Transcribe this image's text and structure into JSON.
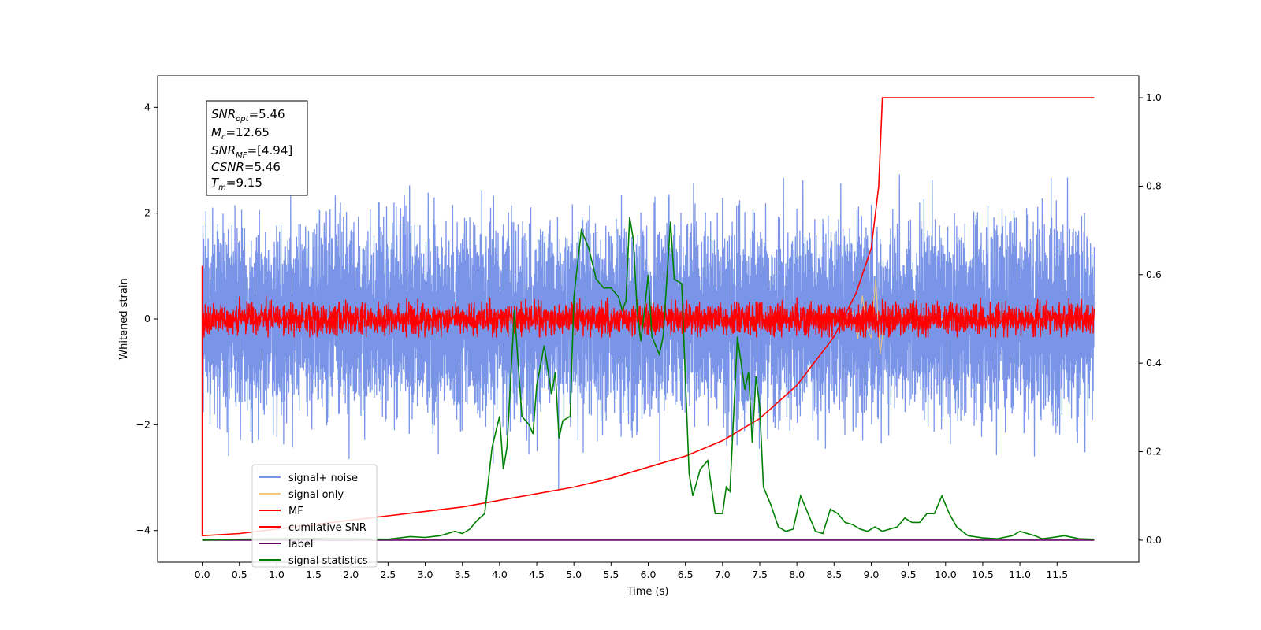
{
  "chart_data": {
    "type": "line",
    "title": "",
    "xlabel": "Time (s)",
    "ylabel": "Whitened strain",
    "xlim": [
      -0.6,
      12.6
    ],
    "ylim": [
      -4.6,
      4.6
    ],
    "y2lim": [
      -0.05,
      1.05
    ],
    "x_ticks": [
      0.0,
      0.5,
      1.0,
      1.5,
      2.0,
      2.5,
      3.0,
      3.5,
      4.0,
      4.5,
      5.0,
      5.5,
      6.0,
      6.5,
      7.0,
      7.5,
      8.0,
      8.5,
      9.0,
      9.5,
      10.0,
      10.5,
      11.0,
      11.5
    ],
    "x_tick_labels": [
      "0.0",
      "0.5",
      "1.0",
      "1.5",
      "2.0",
      "2.5",
      "3.0",
      "3.5",
      "4.0",
      "4.5",
      "5.0",
      "5.5",
      "6.0",
      "6.5",
      "7.0",
      "7.5",
      "8.0",
      "8.5",
      "9.0",
      "9.5",
      "10.0",
      "10.5",
      "11.0",
      "11.5"
    ],
    "y_ticks": [
      -4,
      -2,
      0,
      2,
      4
    ],
    "y_tick_labels": [
      "−4",
      "−2",
      "0",
      "2",
      "4"
    ],
    "y2_ticks": [
      0.0,
      0.2,
      0.4,
      0.6,
      0.8,
      1.0
    ],
    "y2_tick_labels": [
      "0.0",
      "0.2",
      "0.4",
      "0.6",
      "0.8",
      "1.0"
    ],
    "grid": false,
    "legend_position": "lower-left",
    "stats_box": {
      "snr_opt": "=5.46",
      "mc": "=12.65",
      "snr_mf": "=[4.94]",
      "csnr": "=5.46",
      "tm": "=9.15"
    },
    "series": [
      {
        "name": "signal+ noise",
        "axis": "left",
        "color": "#7a95e8",
        "description_type": "noise",
        "x_range": [
          0.0,
          12.0
        ],
        "envelope": [
          -3.6,
          4.1
        ]
      },
      {
        "name": "signal only",
        "axis": "left",
        "color": "#f5c87a",
        "chirp_peak_time": 9.15,
        "peak_amplitude": 0.9
      },
      {
        "name": "MF",
        "axis": "left",
        "color": "#ff0000",
        "description_type": "noise",
        "x_range": [
          0.0,
          12.0
        ],
        "envelope": [
          -0.35,
          1.0
        ]
      },
      {
        "name": "cumilative SNR",
        "axis": "right",
        "color": "#ff0000",
        "x": [
          0.0,
          0.0,
          0.5,
          1.0,
          1.5,
          2.0,
          2.5,
          3.0,
          3.5,
          4.0,
          4.5,
          5.0,
          5.5,
          6.0,
          6.5,
          7.0,
          7.5,
          8.0,
          8.5,
          8.8,
          9.0,
          9.1,
          9.15,
          9.2,
          10.0,
          11.0,
          12.0
        ],
        "values": [
          0.62,
          0.01,
          0.015,
          0.025,
          0.035,
          0.045,
          0.055,
          0.065,
          0.075,
          0.09,
          0.105,
          0.12,
          0.14,
          0.165,
          0.19,
          0.225,
          0.275,
          0.35,
          0.46,
          0.56,
          0.66,
          0.8,
          1.0,
          1.0,
          1.0,
          1.0,
          1.0
        ]
      },
      {
        "name": "label",
        "axis": "right",
        "color": "#660066",
        "x": [
          0.0,
          12.0
        ],
        "values": [
          0.0,
          0.0
        ]
      },
      {
        "name": "signal statistics",
        "axis": "right",
        "color": "#008000",
        "x": [
          0.0,
          0.5,
          1.0,
          1.5,
          2.0,
          2.5,
          2.8,
          3.0,
          3.2,
          3.4,
          3.5,
          3.6,
          3.7,
          3.8,
          3.9,
          4.0,
          4.05,
          4.1,
          4.2,
          4.3,
          4.4,
          4.45,
          4.5,
          4.6,
          4.7,
          4.75,
          4.8,
          4.85,
          4.95,
          5.0,
          5.1,
          5.2,
          5.3,
          5.4,
          5.5,
          5.6,
          5.65,
          5.7,
          5.75,
          5.8,
          5.85,
          5.9,
          5.95,
          6.0,
          6.05,
          6.1,
          6.15,
          6.2,
          6.3,
          6.35,
          6.45,
          6.55,
          6.6,
          6.7,
          6.8,
          6.9,
          7.0,
          7.05,
          7.1,
          7.2,
          7.25,
          7.3,
          7.35,
          7.4,
          7.45,
          7.5,
          7.55,
          7.65,
          7.75,
          7.85,
          7.95,
          8.05,
          8.15,
          8.25,
          8.35,
          8.45,
          8.55,
          8.65,
          8.75,
          8.85,
          8.95,
          9.05,
          9.15,
          9.25,
          9.35,
          9.45,
          9.55,
          9.65,
          9.75,
          9.85,
          9.95,
          10.05,
          10.15,
          10.3,
          10.5,
          10.7,
          10.9,
          11.0,
          11.1,
          11.2,
          11.3,
          11.4,
          11.6,
          11.8,
          12.0
        ],
        "values": [
          0.0,
          0.002,
          0.003,
          0.004,
          0.003,
          0.002,
          0.008,
          0.006,
          0.01,
          0.02,
          0.015,
          0.025,
          0.045,
          0.06,
          0.21,
          0.28,
          0.16,
          0.21,
          0.52,
          0.28,
          0.26,
          0.24,
          0.35,
          0.44,
          0.33,
          0.38,
          0.23,
          0.27,
          0.28,
          0.55,
          0.7,
          0.66,
          0.59,
          0.57,
          0.57,
          0.55,
          0.52,
          0.54,
          0.73,
          0.68,
          0.52,
          0.45,
          0.52,
          0.6,
          0.46,
          0.44,
          0.42,
          0.46,
          0.72,
          0.59,
          0.58,
          0.15,
          0.1,
          0.16,
          0.18,
          0.06,
          0.06,
          0.12,
          0.11,
          0.46,
          0.4,
          0.34,
          0.38,
          0.22,
          0.37,
          0.3,
          0.12,
          0.08,
          0.03,
          0.02,
          0.025,
          0.1,
          0.06,
          0.02,
          0.015,
          0.07,
          0.06,
          0.04,
          0.035,
          0.025,
          0.02,
          0.03,
          0.02,
          0.025,
          0.03,
          0.05,
          0.04,
          0.04,
          0.06,
          0.06,
          0.1,
          0.06,
          0.03,
          0.01,
          0.005,
          0.003,
          0.01,
          0.02,
          0.015,
          0.01,
          0.003,
          0.005,
          0.01,
          0.003,
          0.002
        ]
      }
    ]
  }
}
